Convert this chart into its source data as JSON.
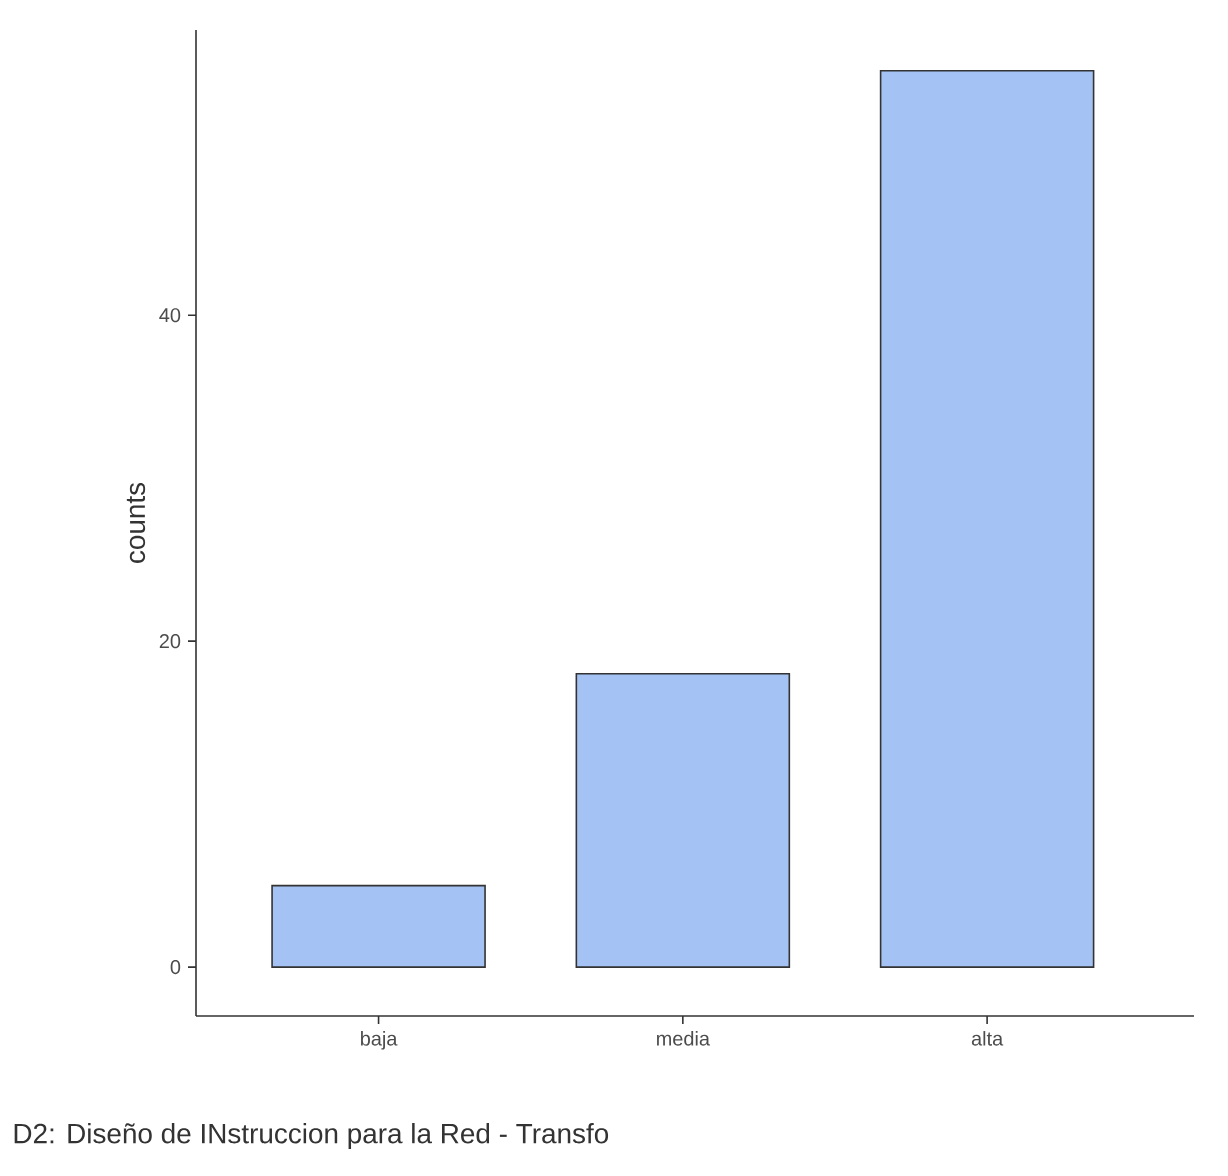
{
  "chart_data": {
    "type": "bar",
    "xlabel": "D2: Diseño de INstruccion para la Red - Transfo",
    "ylabel": "counts",
    "categories": [
      "baja",
      "media",
      "alta"
    ],
    "values": [
      5,
      18,
      55
    ],
    "color": "#a4c2f4",
    "ylim": [
      -3,
      57.5
    ],
    "yticks": [
      0,
      20,
      40
    ]
  }
}
